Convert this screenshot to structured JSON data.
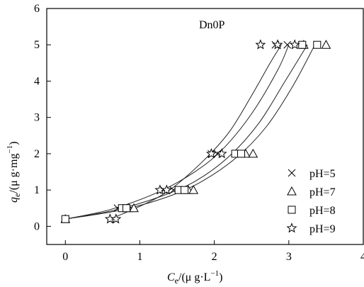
{
  "chart_data": {
    "type": "scatter",
    "title": "Dn0P",
    "xlabel": {
      "main": "C",
      "sub": "e",
      "unit": "/(μ g·L",
      "sup": "−1",
      "close": ")"
    },
    "ylabel": {
      "main": "q",
      "sub": "e",
      "unit": "/(μ g·mg",
      "sup": "−1",
      "close": ")"
    },
    "xlim": [
      -0.25,
      4
    ],
    "ylim": [
      -0.5,
      6
    ],
    "xticks": [
      0,
      1,
      2,
      3,
      4
    ],
    "yticks": [
      0,
      1,
      2,
      3,
      4,
      5,
      6
    ],
    "grid": false,
    "legend_position": "bottom-right",
    "series": [
      {
        "name": "pH=5",
        "marker": "x-icon",
        "points": [
          [
            0.0,
            0.2
          ],
          [
            0.7,
            0.5
          ],
          [
            0.78,
            0.5
          ],
          [
            1.32,
            1.0
          ],
          [
            1.45,
            1.0
          ],
          [
            1.96,
            2.0
          ],
          [
            2.04,
            2.0
          ],
          [
            2.82,
            5.0
          ],
          [
            2.98,
            5.0
          ]
        ],
        "fit": [
          [
            0.0,
            0.2
          ],
          [
            0.6,
            0.46
          ],
          [
            1.2,
            0.9
          ],
          [
            1.7,
            1.45
          ],
          [
            2.1,
            2.1
          ],
          [
            2.5,
            3.1
          ],
          [
            2.85,
            4.3
          ],
          [
            3.0,
            5.0
          ]
        ]
      },
      {
        "name": "pH=7",
        "marker": "triangle-icon",
        "points": [
          [
            0.0,
            0.2
          ],
          [
            0.85,
            0.5
          ],
          [
            0.92,
            0.5
          ],
          [
            1.65,
            1.0
          ],
          [
            1.72,
            1.0
          ],
          [
            2.42,
            2.0
          ],
          [
            2.52,
            2.0
          ],
          [
            3.2,
            5.0
          ],
          [
            3.5,
            5.0
          ]
        ],
        "fit": [
          [
            0.0,
            0.2
          ],
          [
            0.7,
            0.43
          ],
          [
            1.3,
            0.76
          ],
          [
            1.8,
            1.2
          ],
          [
            2.3,
            1.9
          ],
          [
            2.7,
            2.75
          ],
          [
            3.05,
            3.85
          ],
          [
            3.35,
            5.0
          ]
        ]
      },
      {
        "name": "pH=8",
        "marker": "square-icon",
        "points": [
          [
            0.0,
            0.2
          ],
          [
            0.76,
            0.5
          ],
          [
            0.82,
            0.5
          ],
          [
            1.52,
            1.0
          ],
          [
            1.6,
            1.0
          ],
          [
            2.28,
            2.0
          ],
          [
            2.36,
            2.0
          ],
          [
            3.18,
            5.0
          ],
          [
            3.38,
            5.0
          ]
        ],
        "fit": [
          [
            0.0,
            0.2
          ],
          [
            0.65,
            0.44
          ],
          [
            1.25,
            0.8
          ],
          [
            1.75,
            1.25
          ],
          [
            2.2,
            1.93
          ],
          [
            2.6,
            2.85
          ],
          [
            2.95,
            4.0
          ],
          [
            3.25,
            5.0
          ]
        ]
      },
      {
        "name": "pH=9",
        "marker": "star-icon",
        "points": [
          [
            0.6,
            0.2
          ],
          [
            0.68,
            0.2
          ],
          [
            1.27,
            1.0
          ],
          [
            1.36,
            1.0
          ],
          [
            1.96,
            2.0
          ],
          [
            2.1,
            2.0
          ],
          [
            2.62,
            5.0
          ],
          [
            2.85,
            5.0
          ],
          [
            3.08,
            5.0
          ]
        ],
        "fit": [
          [
            0.6,
            0.2
          ],
          [
            1.0,
            0.55
          ],
          [
            1.4,
            1.0
          ],
          [
            1.85,
            1.8
          ],
          [
            2.2,
            2.6
          ],
          [
            2.5,
            3.6
          ],
          [
            2.75,
            4.5
          ],
          [
            2.9,
            5.0
          ]
        ]
      }
    ]
  }
}
